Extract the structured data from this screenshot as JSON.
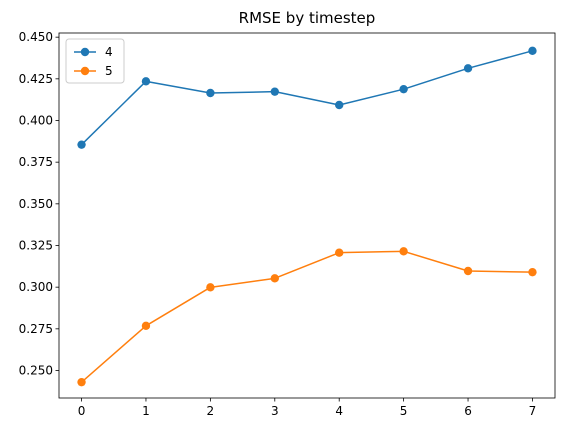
{
  "chart_data": {
    "type": "line",
    "title": "RMSE by timestep",
    "xlabel": "",
    "ylabel": "",
    "x": [
      0,
      1,
      2,
      3,
      4,
      5,
      6,
      7
    ],
    "xlim": [
      -0.35,
      7.35
    ],
    "ylim": [
      0.2335,
      0.4525
    ],
    "xticks": [
      "0",
      "1",
      "2",
      "3",
      "4",
      "5",
      "6",
      "7"
    ],
    "yticks": [
      "0.250",
      "0.275",
      "0.300",
      "0.325",
      "0.350",
      "0.375",
      "0.400",
      "0.425",
      "0.450"
    ],
    "grid": false,
    "legend_position": "top-left",
    "series": [
      {
        "name": "4",
        "color": "#1f77b4",
        "marker": "circle",
        "values": [
          0.3855,
          0.4235,
          0.4165,
          0.4173,
          0.4093,
          0.4188,
          0.4313,
          0.4418
        ]
      },
      {
        "name": "5",
        "color": "#ff7f0e",
        "marker": "circle",
        "values": [
          0.243,
          0.2768,
          0.2999,
          0.3053,
          0.3207,
          0.3215,
          0.3097,
          0.309
        ]
      }
    ]
  }
}
